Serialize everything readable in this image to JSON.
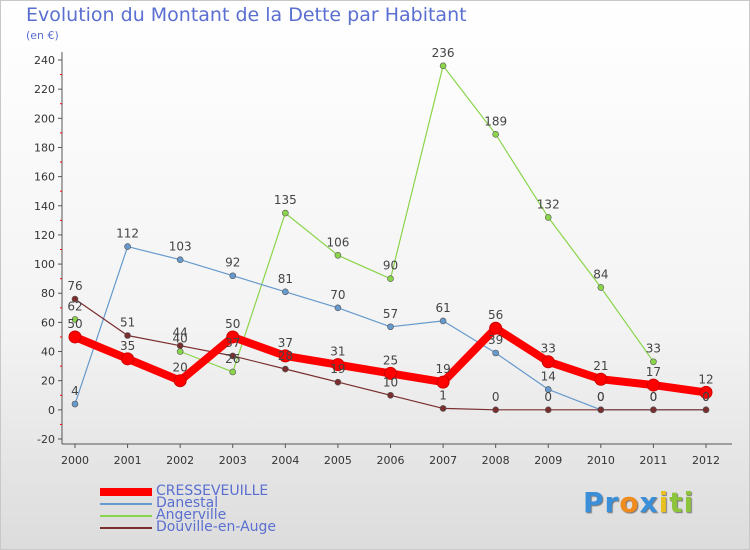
{
  "title": "Evolution du Montant de la Dette par Habitant",
  "subtitle": "(en €)",
  "logo": {
    "parts": [
      "Pr",
      "o",
      "x",
      "i",
      "ti"
    ],
    "colors": [
      "#3a8fd8",
      "#f08c1e",
      "#3a8fd8",
      "#e8c020",
      "#8cc43c"
    ]
  },
  "chart_data": {
    "type": "line",
    "x": [
      "2000",
      "2001",
      "2002",
      "2003",
      "2004",
      "2005",
      "2006",
      "2007",
      "2008",
      "2009",
      "2010",
      "2011",
      "2012"
    ],
    "ylim": [
      -20,
      240
    ],
    "yticks": [
      -20,
      0,
      20,
      40,
      60,
      80,
      100,
      120,
      140,
      160,
      180,
      200,
      220,
      240
    ],
    "grid": false,
    "legend": "bottom-left",
    "series": [
      {
        "name": "Angerville",
        "color": "#8ad54a",
        "values": [
          62,
          null,
          40,
          26,
          135,
          106,
          90,
          236,
          189,
          132,
          84,
          33,
          null
        ],
        "labels": [
          "62",
          "",
          "40",
          "26",
          "135",
          "106",
          "90",
          "236",
          "189",
          "132",
          "84",
          "33",
          ""
        ]
      },
      {
        "name": "Danestal",
        "color": "#6699cc",
        "values": [
          4,
          112,
          103,
          92,
          81,
          70,
          57,
          61,
          39,
          14,
          0,
          0,
          0
        ],
        "labels": [
          "4",
          "112",
          "103",
          "92",
          "81",
          "70",
          "57",
          "61",
          "39",
          "14",
          "0",
          "0",
          "0"
        ]
      },
      {
        "name": "Douville-en-Auge",
        "color": "#7a2e2e",
        "values": [
          76,
          51,
          44,
          37,
          28,
          19,
          10,
          1,
          0,
          0,
          0,
          0,
          0
        ],
        "labels": [
          "76",
          "51",
          "44",
          "37",
          "28",
          "19",
          "10",
          "1",
          "0",
          "0",
          "0",
          "0",
          "0"
        ]
      },
      {
        "name": "CRESSEVEUILLE",
        "color": "#ff0000",
        "values": [
          50,
          35,
          20,
          50,
          37,
          31,
          25,
          19,
          56,
          33,
          21,
          17,
          12
        ],
        "labels": [
          "50",
          "35",
          "20",
          "50",
          "37",
          "31",
          "25",
          "19",
          "56",
          "33",
          "21",
          "17",
          "12"
        ]
      }
    ],
    "legend_order": [
      "CRESSEVEUILLE",
      "Danestal",
      "Angerville",
      "Douville-en-Auge"
    ]
  }
}
